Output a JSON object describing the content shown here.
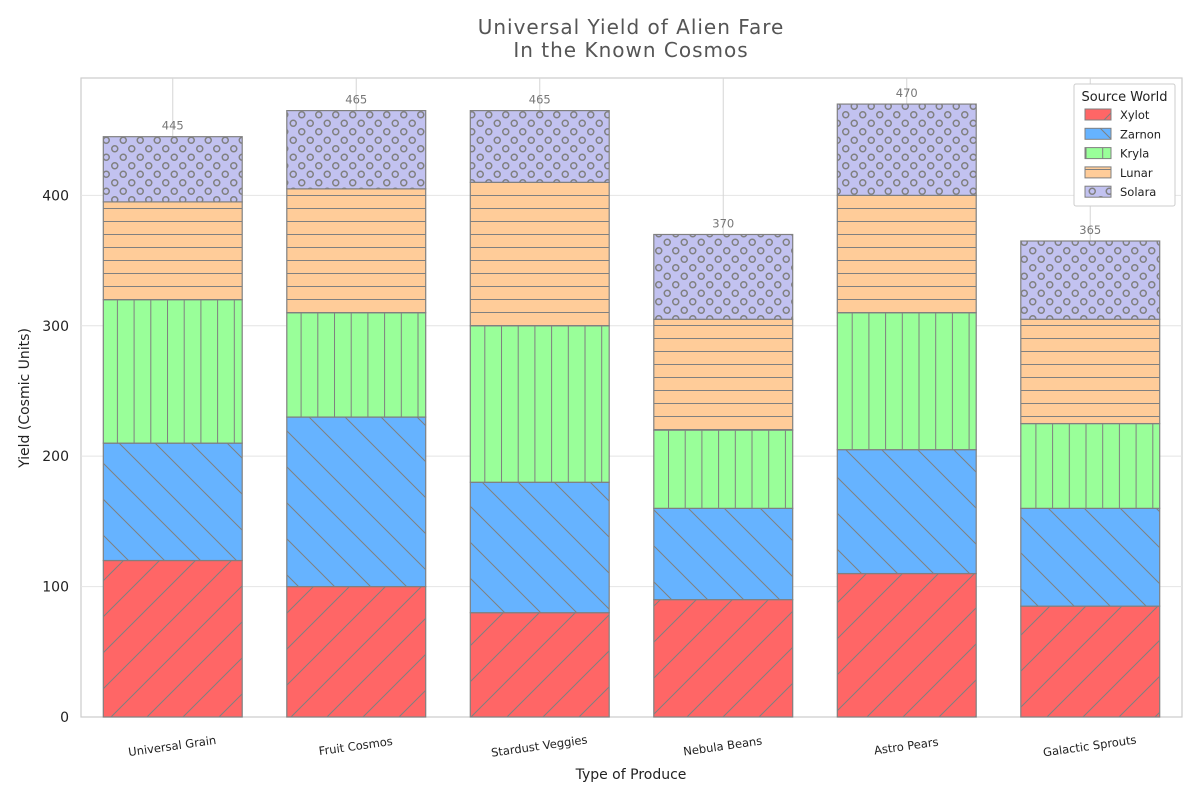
{
  "chart_data": {
    "type": "bar",
    "stacked": true,
    "title": "Universal Yield of Alien Fare",
    "subtitle": "In the Known Cosmos",
    "xlabel": "Type of Produce",
    "ylabel": "Yield (Cosmic Units)",
    "ylim": [
      0,
      490
    ],
    "yticks": [
      "0",
      "100",
      "200",
      "300",
      "400"
    ],
    "grid": true,
    "legend_title": "Source World",
    "legend_position": "top-right",
    "categories": [
      "Universal Grain",
      "Fruit Cosmos",
      "Stardust Veggies",
      "Nebula Beans",
      "Astro Pears",
      "Galactic Sprouts"
    ],
    "totals": [
      "445",
      "465",
      "465",
      "370",
      "470",
      "365"
    ],
    "series": [
      {
        "name": "Xylot",
        "color": "#ff6666",
        "hatch": "diagonal-forward",
        "values": [
          120,
          100,
          80,
          90,
          110,
          85
        ]
      },
      {
        "name": "Zarnon",
        "color": "#66b3ff",
        "hatch": "diagonal-back",
        "values": [
          90,
          130,
          100,
          70,
          95,
          75
        ]
      },
      {
        "name": "Kryla",
        "color": "#99ff99",
        "hatch": "vertical",
        "values": [
          110,
          80,
          120,
          60,
          105,
          65
        ]
      },
      {
        "name": "Lunar",
        "color": "#ffcc99",
        "hatch": "horizontal",
        "values": [
          75,
          95,
          110,
          85,
          90,
          80
        ]
      },
      {
        "name": "Solara",
        "color": "#c2c2f0",
        "hatch": "circles",
        "values": [
          50,
          60,
          55,
          65,
          70,
          60
        ]
      }
    ]
  }
}
